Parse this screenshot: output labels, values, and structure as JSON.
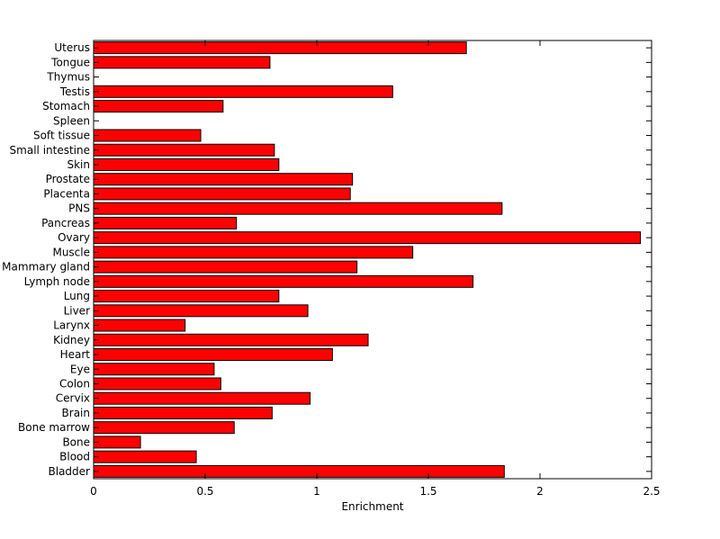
{
  "chart_data": {
    "type": "bar",
    "orientation": "horizontal",
    "title": "",
    "xlabel": "Enrichment",
    "ylabel": "",
    "xlim": [
      0,
      2.5
    ],
    "xticks": [
      0,
      0.5,
      1,
      1.5,
      2,
      2.5
    ],
    "xtick_labels": [
      "0",
      "0.5",
      "1",
      "1.5",
      "2",
      "2.5"
    ],
    "grid": false,
    "bar_color": "#ff0000",
    "categories": [
      "Uterus",
      "Tongue",
      "Thymus",
      "Testis",
      "Stomach",
      "Spleen",
      "Soft tissue",
      "Small intestine",
      "Skin",
      "Prostate",
      "Placenta",
      "PNS",
      "Pancreas",
      "Ovary",
      "Muscle",
      "Mammary gland",
      "Lymph node",
      "Lung",
      "Liver",
      "Larynx",
      "Kidney",
      "Heart",
      "Eye",
      "Colon",
      "Cervix",
      "Brain",
      "Bone marrow",
      "Bone",
      "Blood",
      "Bladder"
    ],
    "values": [
      1.67,
      0.79,
      0,
      1.34,
      0.58,
      0,
      0.48,
      0.81,
      0.83,
      1.16,
      1.15,
      1.83,
      0.64,
      2.45,
      1.43,
      1.18,
      1.7,
      0.83,
      0.96,
      0.41,
      1.23,
      1.07,
      0.54,
      0.57,
      0.97,
      0.8,
      0.63,
      0.21,
      0.46,
      1.84
    ]
  }
}
